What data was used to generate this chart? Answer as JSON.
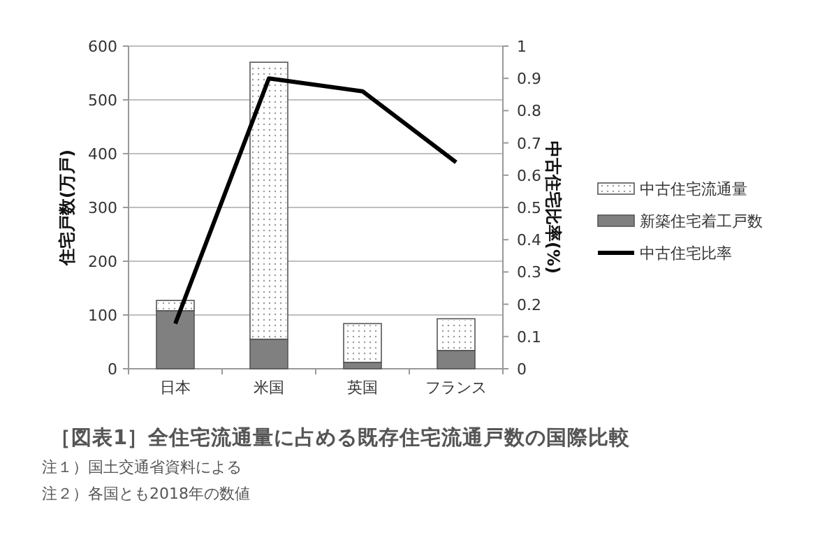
{
  "chart_data": {
    "type": "bar",
    "stacked": true,
    "title": "［図表1］全住宅流通量に占める既存住宅流通戸数の国際比較",
    "annotations": [
      "注１）国土交通省資料による",
      "注２）各国とも2018年の数値"
    ],
    "ylabel": "住宅戸数(万戸)",
    "y2label": "中古住宅比率(%)",
    "categories": [
      "日本",
      "米国",
      "英国",
      "フランス"
    ],
    "series": [
      {
        "name": "新築住宅着工戸数",
        "color": "#808080",
        "values": [
          108,
          55,
          12,
          34
        ]
      },
      {
        "name": "中古住宅流通量",
        "color": "#ffffff",
        "values": [
          19,
          515,
          72,
          59
        ]
      },
      {
        "name": "中古住宅比率",
        "type": "line",
        "axis": "y2",
        "color": "#000000",
        "values": [
          0.14,
          0.9,
          0.86,
          0.64
        ]
      }
    ],
    "ylim": [
      0,
      600
    ],
    "yticks": [
      0,
      100,
      200,
      300,
      400,
      500,
      600
    ],
    "y2lim": [
      0,
      1
    ],
    "y2ticks": [
      0,
      0.1,
      0.2,
      0.3,
      0.4,
      0.5,
      0.6,
      0.7,
      0.8,
      0.9,
      1
    ],
    "grid": "y",
    "legend": "right",
    "marker": "none",
    "line_style": "solid"
  }
}
